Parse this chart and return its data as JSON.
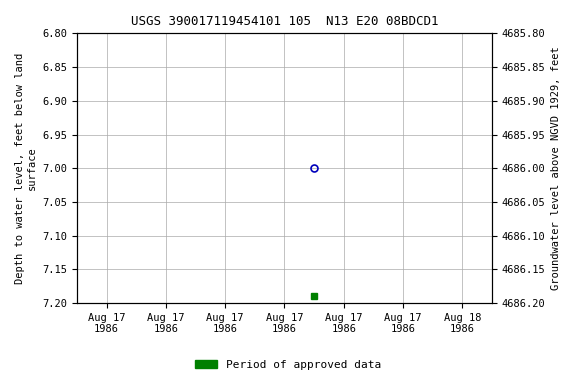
{
  "title": "USGS 390017119454101 105  N13 E20 08BDCD1",
  "ylabel_left": "Depth to water level, feet below land\nsurface",
  "ylabel_right": "Groundwater level above NGVD 1929, feet",
  "ylim_left": [
    6.8,
    7.2
  ],
  "ylim_right_top": 4686.2,
  "ylim_right_bottom": 4685.8,
  "yticks_left": [
    6.8,
    6.85,
    6.9,
    6.95,
    7.0,
    7.05,
    7.1,
    7.15,
    7.2
  ],
  "yticks_right": [
    4686.2,
    4686.15,
    4686.1,
    4686.05,
    4686.0,
    4685.95,
    4685.9,
    4685.85,
    4685.8
  ],
  "ytick_labels_right": [
    "4686.20",
    "4686.15",
    "4686.10",
    "4686.05",
    "4686.00",
    "4685.95",
    "4685.90",
    "4685.85",
    "4685.80"
  ],
  "point_blue_x": 3.5,
  "point_blue_y": 7.0,
  "point_green_x": 3.5,
  "point_green_y": 7.19,
  "blue_color": "#0000bb",
  "green_color": "#008000",
  "background_color": "#ffffff",
  "grid_color": "#aaaaaa",
  "legend_label": "Period of approved data",
  "xtick_labels": [
    "Aug 17\n1986",
    "Aug 17\n1986",
    "Aug 17\n1986",
    "Aug 17\n1986",
    "Aug 17\n1986",
    "Aug 17\n1986",
    "Aug 18\n1986"
  ],
  "xtick_positions": [
    0,
    1,
    2,
    3,
    4,
    5,
    6
  ],
  "xlim": [
    -0.5,
    6.5
  ]
}
